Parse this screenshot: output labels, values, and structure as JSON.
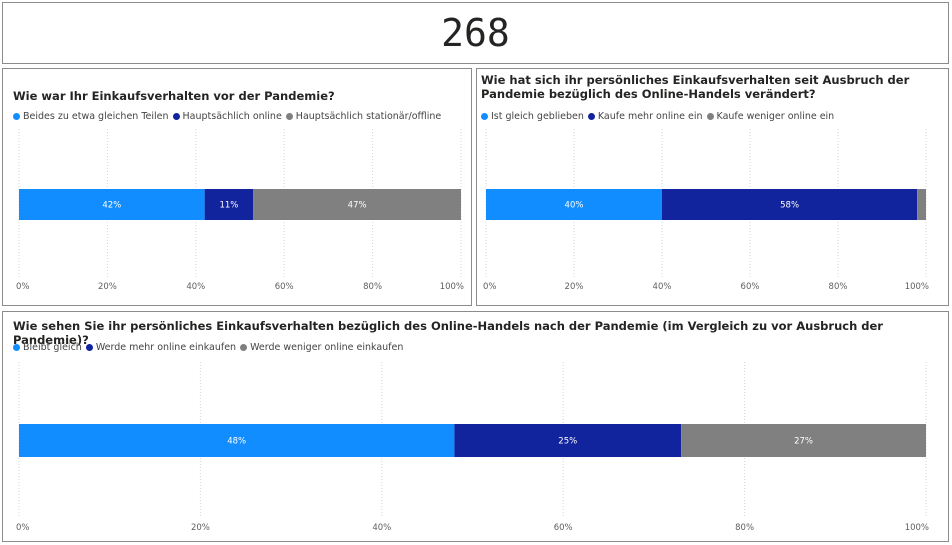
{
  "kpi": {
    "value": "268"
  },
  "colors": {
    "blue": "#118dff",
    "navy": "#12239e",
    "gray": "#808080"
  },
  "chart_data": [
    {
      "type": "bar",
      "orientation": "horizontal-100%-stacked",
      "title": "Wie war Ihr Einkaufsverhalten vor der Pandemie?",
      "series": [
        {
          "name": "Beides zu etwa gleichen Teilen",
          "values": [
            42
          ],
          "label": "42%",
          "color": "#118dff"
        },
        {
          "name": "Hauptsächlich online",
          "values": [
            11
          ],
          "label": "11%",
          "color": "#12239e"
        },
        {
          "name": "Hauptsächlich stationär/offline",
          "values": [
            47
          ],
          "label": "47%",
          "color": "#808080"
        }
      ],
      "xlim": [
        0,
        100
      ],
      "ticks": [
        "0%",
        "20%",
        "40%",
        "60%",
        "80%",
        "100%"
      ],
      "grid": true,
      "legend": "top-left"
    },
    {
      "type": "bar",
      "orientation": "horizontal-100%-stacked",
      "title": "Wie hat sich ihr persönliches Einkaufsverhalten seit Ausbruch der Pandemie bezüglich des Online-Handels verändert?",
      "series": [
        {
          "name": "Ist gleich geblieben",
          "values": [
            40
          ],
          "label": "40%",
          "color": "#118dff"
        },
        {
          "name": "Kaufe mehr online ein",
          "values": [
            58
          ],
          "label": "58%",
          "color": "#12239e"
        },
        {
          "name": "Kaufe weniger online ein",
          "values": [
            2
          ],
          "label": "",
          "color": "#808080"
        }
      ],
      "xlim": [
        0,
        100
      ],
      "ticks": [
        "0%",
        "20%",
        "40%",
        "60%",
        "80%",
        "100%"
      ],
      "grid": true,
      "legend": "top-left"
    },
    {
      "type": "bar",
      "orientation": "horizontal-100%-stacked",
      "title": "Wie sehen Sie ihr persönliches Einkaufsverhalten bezüglich des Online-Handels nach der Pandemie (im Vergleich zu vor Ausbruch der Pandemie)?",
      "series": [
        {
          "name": "Bleibt gleich",
          "values": [
            48
          ],
          "label": "48%",
          "color": "#118dff"
        },
        {
          "name": "Werde mehr online einkaufen",
          "values": [
            25
          ],
          "label": "25%",
          "color": "#12239e"
        },
        {
          "name": "Werde weniger online einkaufen",
          "values": [
            27
          ],
          "label": "27%",
          "color": "#808080"
        }
      ],
      "xlim": [
        0,
        100
      ],
      "ticks": [
        "0%",
        "20%",
        "40%",
        "60%",
        "80%",
        "100%"
      ],
      "grid": true,
      "legend": "top-left"
    }
  ]
}
